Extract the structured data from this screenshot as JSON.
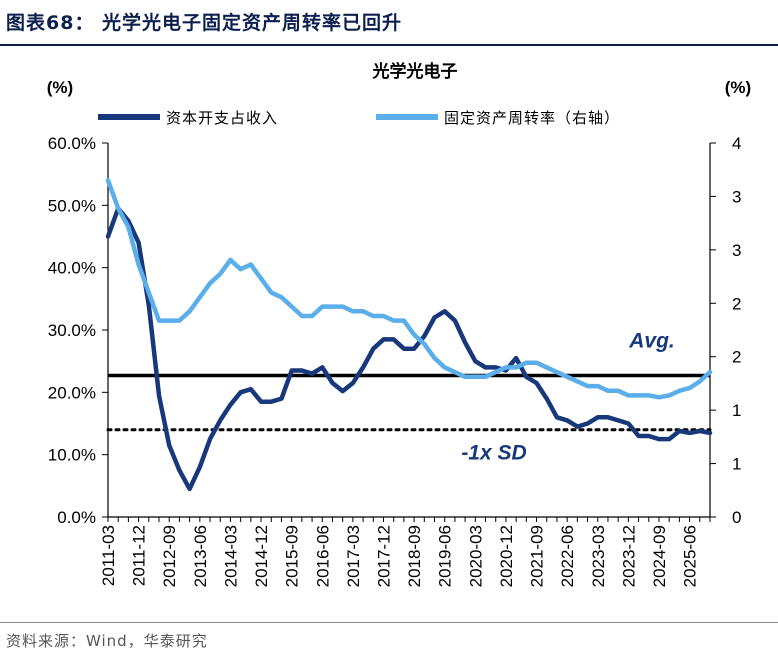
{
  "figure": {
    "title": "图表68：  光学光电子固定资产周转率已回升",
    "source": "资料来源：Wind，华泰研究"
  },
  "chart_data": {
    "type": "line",
    "title": "光学光电子",
    "left_unit": "(%)",
    "right_unit": "(%)",
    "left_axis": {
      "min": 0,
      "max": 60,
      "ticks": [
        "0.0%",
        "10.0%",
        "20.0%",
        "30.0%",
        "40.0%",
        "50.0%",
        "60.0%"
      ]
    },
    "right_axis": {
      "min": 0,
      "max": 4,
      "ticks": [
        "0",
        "1",
        "1",
        "2",
        "2",
        "3",
        "3",
        "4"
      ]
    },
    "x_tick_labels": [
      "2011-03",
      "2011-12",
      "2012-09",
      "2013-06",
      "2014-03",
      "2014-12",
      "2015-09",
      "2016-06",
      "2017-03",
      "2017-12",
      "2018-09",
      "2019-06",
      "2020-03",
      "2020-12",
      "2021-09",
      "2022-06",
      "2023-03",
      "2023-12",
      "2024-09",
      "2025-06"
    ],
    "x_tick_quarter_index": [
      0,
      3,
      6,
      9,
      12,
      15,
      18,
      21,
      24,
      27,
      30,
      33,
      36,
      39,
      42,
      45,
      48,
      51,
      54,
      57
    ],
    "series": [
      {
        "name": "资本开支占收入",
        "axis": "left",
        "color": "#17387a",
        "values": [
          45.0,
          49.5,
          47.5,
          44.0,
          34.0,
          19.5,
          11.5,
          7.5,
          4.5,
          8.0,
          12.5,
          15.5,
          18.0,
          20.0,
          20.5,
          18.5,
          18.5,
          19.0,
          23.5,
          23.5,
          23.0,
          24.0,
          21.5,
          20.2,
          21.5,
          24.0,
          27.0,
          28.5,
          28.5,
          27.0,
          27.0,
          29.0,
          32.0,
          33.0,
          31.5,
          28.0,
          25.0,
          24.0,
          24.0,
          23.5,
          25.5,
          22.5,
          21.5,
          19.0,
          16.0,
          15.5,
          14.5,
          15.0,
          16.0,
          16.0,
          15.5,
          15.0,
          13.0,
          13.0,
          12.5,
          12.5,
          13.8,
          13.5,
          13.8,
          13.5
        ]
      },
      {
        "name": "固定资产周转率（右轴）",
        "axis": "right",
        "color": "#5aaeea",
        "values": [
          3.6,
          3.3,
          3.1,
          2.7,
          2.4,
          2.1,
          2.1,
          2.1,
          2.2,
          2.35,
          2.5,
          2.6,
          2.75,
          2.65,
          2.7,
          2.55,
          2.4,
          2.35,
          2.25,
          2.15,
          2.15,
          2.25,
          2.25,
          2.25,
          2.2,
          2.2,
          2.15,
          2.15,
          2.1,
          2.1,
          1.95,
          1.85,
          1.7,
          1.6,
          1.55,
          1.5,
          1.5,
          1.5,
          1.55,
          1.6,
          1.6,
          1.65,
          1.65,
          1.6,
          1.55,
          1.5,
          1.45,
          1.4,
          1.4,
          1.35,
          1.35,
          1.3,
          1.3,
          1.3,
          1.28,
          1.3,
          1.35,
          1.38,
          1.45,
          1.55
        ]
      }
    ],
    "reference_lines": [
      {
        "label": "Avg.",
        "value": 22.7,
        "style": "solid"
      },
      {
        "label": "-1x SD",
        "value": 14.0,
        "style": "dotted"
      }
    ]
  }
}
